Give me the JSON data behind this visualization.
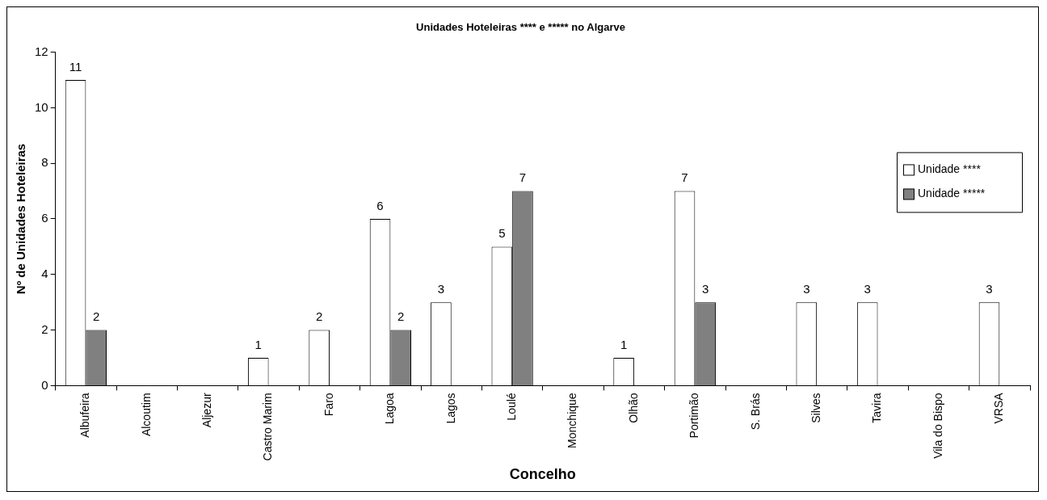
{
  "chart_data": {
    "type": "bar",
    "title": "Unidades Hoteleiras **** e ***** no Algarve",
    "xlabel": "Concelho",
    "ylabel": "Nº de Unidades Hoteleiras",
    "categories": [
      "Albufeira",
      "Alcoutim",
      "Aljezur",
      "Castro Marim",
      "Faro",
      "Lagoa",
      "Lagos",
      "Loulé",
      "Monchique",
      "Olhão",
      "Portimão",
      "S. Brás",
      "Silves",
      "Tavira",
      "Vila do Bispo",
      "VRSA"
    ],
    "series": [
      {
        "name": "Unidade ****",
        "color": "#ffffff",
        "values": [
          11,
          null,
          null,
          1,
          2,
          6,
          3,
          5,
          null,
          1,
          7,
          null,
          3,
          3,
          null,
          3
        ]
      },
      {
        "name": "Unidade *****",
        "color": "#808080",
        "values": [
          2,
          null,
          null,
          null,
          null,
          2,
          null,
          7,
          null,
          null,
          3,
          null,
          null,
          null,
          null,
          null
        ]
      }
    ],
    "ylim": [
      0,
      12
    ],
    "yticks": [
      0,
      2,
      4,
      6,
      8,
      10,
      12
    ],
    "grid": false,
    "legend": "right",
    "data_labels": true
  }
}
